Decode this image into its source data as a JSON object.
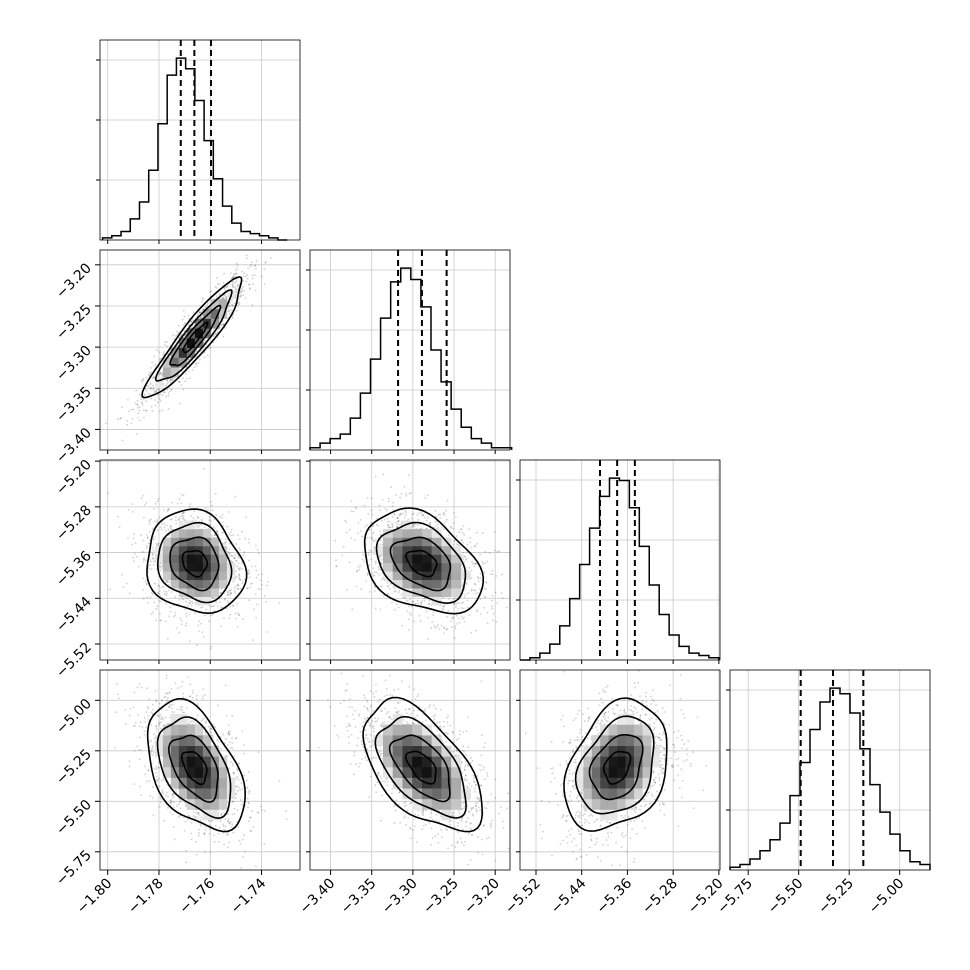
{
  "chart_data": {
    "type": "corner",
    "title": "",
    "grid": true,
    "n_params": 4,
    "param_labels": [
      "",
      "",
      "",
      ""
    ],
    "axis_ranges": [
      [
        -1.803,
        -1.725
      ],
      [
        -3.425,
        -3.182
      ],
      [
        -5.548,
        -5.198
      ],
      [
        -5.84,
        -4.85
      ]
    ],
    "tick_values": [
      [
        -1.8,
        -1.78,
        -1.76,
        -1.74
      ],
      [
        -3.4,
        -3.35,
        -3.3,
        -3.25,
        -3.2
      ],
      [
        -5.52,
        -5.44,
        -5.36,
        -5.28,
        -5.2
      ],
      [
        -5.75,
        -5.5,
        -5.25,
        -5.0
      ]
    ],
    "tick_labels": [
      [
        "−1.80",
        "−1.78",
        "−1.76",
        "−1.74"
      ],
      [
        "−3.40",
        "−3.35",
        "−3.30",
        "−3.25",
        "−3.20"
      ],
      [
        "−5.52",
        "−5.44",
        "−5.36",
        "−5.28",
        "−5.20"
      ],
      [
        "−5.75",
        "−5.50",
        "−5.25",
        "−5.00"
      ]
    ],
    "quantile_lines": [
      [
        -1.7715,
        -1.7662,
        -1.7597
      ],
      [
        -3.318,
        -3.289,
        -3.259
      ],
      [
        -5.408,
        -5.378,
        -5.347
      ],
      [
        -5.49,
        -5.33,
        -5.18
      ]
    ],
    "marginal_histograms": [
      {
        "param": 0,
        "bin_range": [
          -1.802,
          -1.73
        ],
        "counts": [
          1,
          2,
          4,
          10,
          18,
          33,
          55,
          78,
          86,
          81,
          66,
          47,
          29,
          16,
          8,
          4,
          3,
          2,
          1,
          0
        ]
      },
      {
        "param": 1,
        "bin_range": [
          -3.425,
          -3.18
        ],
        "counts": [
          1,
          3,
          5,
          7,
          14,
          25,
          40,
          58,
          74,
          80,
          75,
          63,
          44,
          30,
          18,
          10,
          5,
          3,
          1,
          1
        ]
      },
      {
        "param": 2,
        "bin_range": [
          -5.548,
          -5.2
        ],
        "counts": [
          0,
          1,
          3,
          7,
          15,
          27,
          42,
          58,
          72,
          80,
          79,
          67,
          50,
          33,
          20,
          11,
          6,
          3,
          2,
          1
        ]
      },
      {
        "param": 3,
        "bin_range": [
          -5.84,
          -4.85
        ],
        "counts": [
          1,
          2,
          4,
          7,
          11,
          17,
          27,
          39,
          51,
          61,
          66,
          64,
          57,
          44,
          31,
          21,
          13,
          7,
          3,
          2
        ]
      }
    ],
    "joint_distributions": [
      {
        "x_param": 0,
        "y_param": 1,
        "center": [
          -1.766,
          -3.289
        ],
        "sigma": [
          0.0095,
          0.036
        ],
        "corr": 0.92
      },
      {
        "x_param": 0,
        "y_param": 2,
        "center": [
          -1.766,
          -5.378
        ],
        "sigma": [
          0.0095,
          0.045
        ],
        "corr": -0.15
      },
      {
        "x_param": 1,
        "y_param": 2,
        "center": [
          -3.289,
          -5.378
        ],
        "sigma": [
          0.036,
          0.045
        ],
        "corr": -0.35
      },
      {
        "x_param": 0,
        "y_param": 3,
        "center": [
          -1.766,
          -5.33
        ],
        "sigma": [
          0.0095,
          0.16
        ],
        "corr": -0.45
      },
      {
        "x_param": 1,
        "y_param": 3,
        "center": [
          -3.289,
          -5.33
        ],
        "sigma": [
          0.036,
          0.16
        ],
        "corr": -0.55
      },
      {
        "x_param": 2,
        "y_param": 3,
        "center": [
          -5.378,
          -5.33
        ],
        "sigma": [
          0.045,
          0.16
        ],
        "corr": 0.3
      }
    ],
    "contour_levels_sigma": [
      0.5,
      1.0,
      1.5,
      2.0
    ]
  }
}
